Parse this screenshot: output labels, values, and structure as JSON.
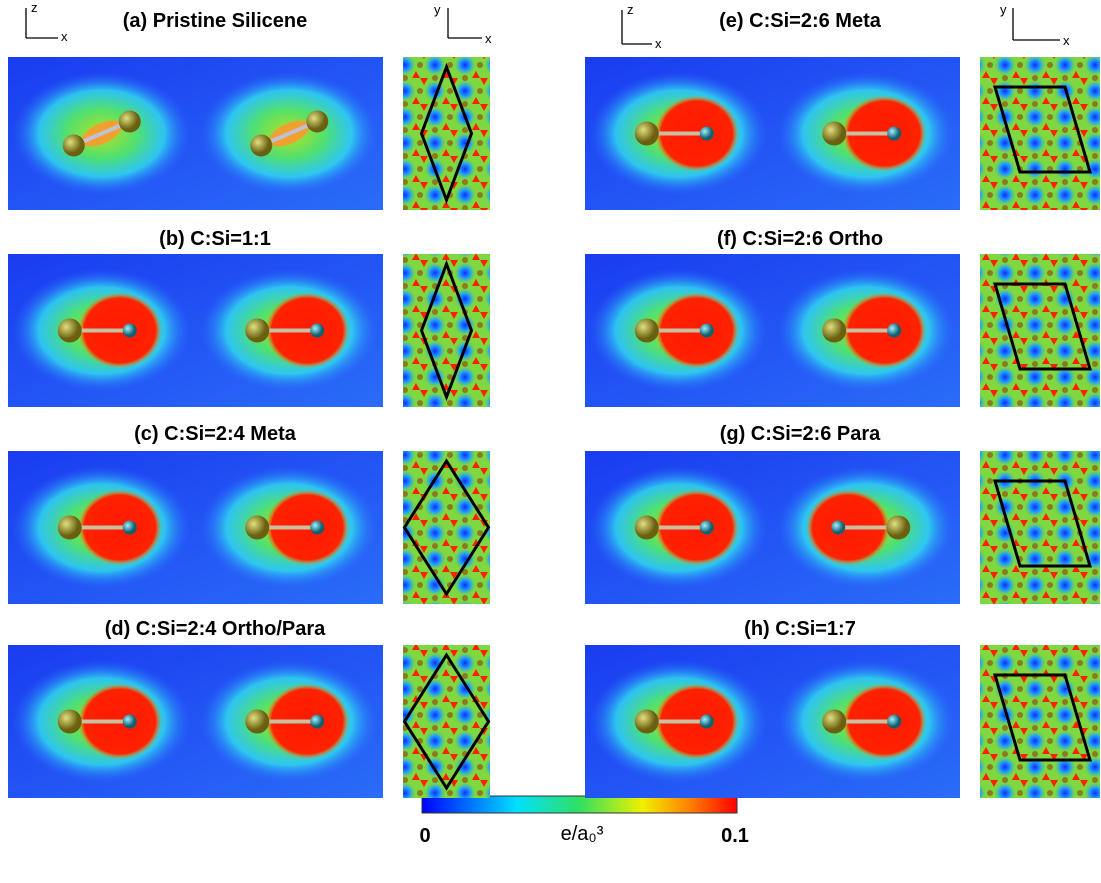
{
  "axes": {
    "left_side": {
      "vertical": "z",
      "horizontal": "x"
    },
    "left_top": {
      "vertical": "y",
      "horizontal": "x"
    },
    "right_side": {
      "vertical": "z",
      "horizontal": "x"
    },
    "right_top": {
      "vertical": "y",
      "horizontal": "x"
    }
  },
  "panels": [
    {
      "label": "(a)  Pristine Silicene"
    },
    {
      "label": "(b)  C:Si=1:1"
    },
    {
      "label": "(c)  C:Si=2:4 Meta"
    },
    {
      "label": "(d)  C:Si=2:4 Ortho/Para"
    },
    {
      "label": "(e)  C:Si=2:6 Meta"
    },
    {
      "label": "(f)  C:Si=2:6 Ortho"
    },
    {
      "label": "(g)  C:Si=2:6 Para"
    },
    {
      "label": "(h)  C:Si=1:7"
    }
  ],
  "colorbar": {
    "min": "0",
    "unit": "e/a₀³",
    "max": "0.1"
  }
}
